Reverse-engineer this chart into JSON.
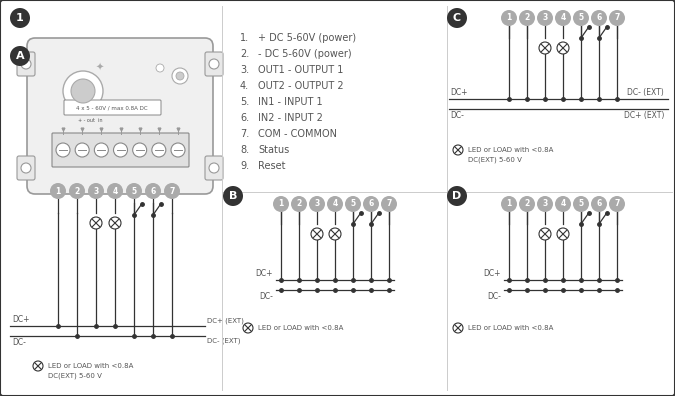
{
  "bg_color": "#ffffff",
  "text_color": "#555555",
  "dark_color": "#333333",
  "gray_circle_color": "#aaaaaa",
  "legend_items": [
    "+ DC 5-60V (power)",
    "- DC 5-60V (power)",
    "OUT1 - OUTPUT 1",
    "OUT2 - OUTPUT 2",
    "IN1 - INPUT 1",
    "IN2 - INPUT 2",
    "COM - COMMON",
    "Status",
    "Reset"
  ],
  "wire_labels": [
    "1",
    "2",
    "3",
    "4",
    "5",
    "6",
    "7"
  ],
  "dc_plus": "DC+",
  "dc_minus": "DC-",
  "dc_plus_ext": "DC+ (EXT)",
  "dc_minus_ext": "DC- (EXT)",
  "led_label": "LED or LOAD with <0.8A",
  "dcext_label": "DC(EXT) 5-60 V",
  "device_label": "4 x 5 - 60V / max 0.8A DC"
}
